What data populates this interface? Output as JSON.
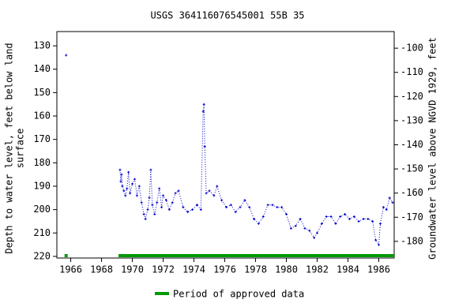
{
  "chart_data": {
    "type": "scatter-line",
    "title": "USGS 364116076545001 55B 35",
    "ylabel": [
      "Depth to water level, feet below land",
      "surface"
    ],
    "y2label": "Groundwater level above NGVD 1929, feet",
    "xlim": [
      1965.1,
      1987.0
    ],
    "xticks": [
      1966,
      1968,
      1970,
      1972,
      1974,
      1976,
      1978,
      1980,
      1982,
      1984,
      1986
    ],
    "ylim": [
      220.7,
      123.9
    ],
    "yticks": [
      130,
      140,
      150,
      160,
      170,
      180,
      190,
      200,
      210,
      220
    ],
    "y2lim": [
      -186.9,
      -93.1
    ],
    "y2ticks": [
      -100,
      -110,
      -120,
      -130,
      -140,
      -150,
      -160,
      -170,
      -180
    ],
    "series": [
      {
        "color": "#0000cc",
        "x": [
          1965.7,
          1969.2,
          1969.25,
          1969.3,
          1969.35,
          1969.45,
          1969.55,
          1969.65,
          1969.75,
          1969.85,
          1970.0,
          1970.15,
          1970.3,
          1970.45,
          1970.6,
          1970.75,
          1970.85,
          1971.0,
          1971.1,
          1971.2,
          1971.3,
          1971.45,
          1971.6,
          1971.75,
          1971.9,
          1972.0,
          1972.2,
          1972.4,
          1972.6,
          1972.8,
          1973.0,
          1973.3,
          1973.6,
          1973.9,
          1974.2,
          1974.45,
          1974.6,
          1974.65,
          1974.7,
          1974.8,
          1975.0,
          1975.3,
          1975.5,
          1975.8,
          1976.1,
          1976.4,
          1976.7,
          1977.0,
          1977.3,
          1977.6,
          1977.9,
          1978.2,
          1978.5,
          1978.8,
          1979.1,
          1979.4,
          1979.7,
          1980.0,
          1980.3,
          1980.6,
          1980.9,
          1981.2,
          1981.5,
          1981.8,
          1982.0,
          1982.3,
          1982.6,
          1982.9,
          1983.2,
          1983.5,
          1983.8,
          1984.1,
          1984.4,
          1984.7,
          1985.0,
          1985.3,
          1985.6,
          1985.8,
          1986.0,
          1986.1,
          1986.3,
          1986.5,
          1986.7,
          1986.9
        ],
        "values": [
          134,
          183,
          188,
          185,
          190,
          192,
          194,
          191,
          184,
          193,
          189,
          187,
          194,
          190,
          197,
          202,
          204,
          200,
          195,
          183,
          198,
          202,
          197,
          191,
          199,
          194,
          196,
          200,
          197,
          193,
          192,
          199,
          201,
          200,
          198,
          200,
          158,
          155,
          173,
          193,
          192,
          194,
          190,
          196,
          199,
          198,
          201,
          199,
          196,
          199,
          204,
          206,
          203,
          198,
          198,
          199,
          199,
          202,
          208,
          207,
          204,
          208,
          209,
          212,
          210,
          206,
          203,
          203,
          206,
          203,
          202,
          204,
          203,
          205,
          204,
          204,
          205,
          213,
          215,
          206,
          199,
          200,
          195,
          197
        ]
      }
    ],
    "approved": {
      "name": "Period of approved data",
      "color": "#009900",
      "periods": [
        [
          1965.6,
          1965.8
        ],
        [
          1969.1,
          1987.0
        ]
      ]
    }
  }
}
